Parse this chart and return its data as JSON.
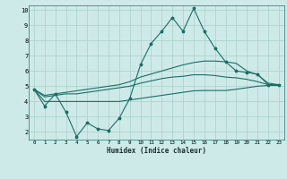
{
  "xlabel": "Humidex (Indice chaleur)",
  "bg_color": "#ceeae8",
  "grid_color": "#aed4d0",
  "line_color": "#1a6e64",
  "x_min": -0.5,
  "x_max": 23.5,
  "y_min": 1.5,
  "y_max": 10.3,
  "yticks": [
    2,
    3,
    4,
    5,
    6,
    7,
    8,
    9,
    10
  ],
  "xticks": [
    0,
    1,
    2,
    3,
    4,
    5,
    6,
    7,
    8,
    9,
    10,
    11,
    12,
    13,
    14,
    15,
    16,
    17,
    18,
    19,
    20,
    21,
    22,
    23
  ],
  "line1_x": [
    0,
    1,
    2,
    3,
    4,
    5,
    6,
    7,
    8,
    9,
    10,
    11,
    12,
    13,
    14,
    15,
    16,
    17,
    18,
    19,
    20,
    21,
    22,
    23
  ],
  "line1_y": [
    4.8,
    3.7,
    4.5,
    3.3,
    1.7,
    2.6,
    2.2,
    2.1,
    2.9,
    4.2,
    6.4,
    7.8,
    8.6,
    9.5,
    8.6,
    10.1,
    8.6,
    7.5,
    6.6,
    6.0,
    5.9,
    5.8,
    5.1,
    5.1
  ],
  "line2_x": [
    0,
    1,
    2,
    3,
    4,
    5,
    6,
    7,
    8,
    9,
    10,
    11,
    12,
    13,
    14,
    15,
    16,
    17,
    18,
    19,
    20,
    21,
    22,
    23
  ],
  "line2_y": [
    4.8,
    4.4,
    4.5,
    4.6,
    4.7,
    4.8,
    4.9,
    5.0,
    5.1,
    5.3,
    5.6,
    5.8,
    6.0,
    6.2,
    6.4,
    6.55,
    6.65,
    6.65,
    6.6,
    6.5,
    6.0,
    5.75,
    5.2,
    5.1
  ],
  "line3_x": [
    0,
    1,
    2,
    3,
    4,
    5,
    6,
    7,
    8,
    9,
    10,
    11,
    12,
    13,
    14,
    15,
    16,
    17,
    18,
    19,
    20,
    21,
    22,
    23
  ],
  "line3_y": [
    4.8,
    4.3,
    4.4,
    4.5,
    4.5,
    4.6,
    4.7,
    4.8,
    4.9,
    5.0,
    5.2,
    5.35,
    5.5,
    5.6,
    5.65,
    5.75,
    5.75,
    5.7,
    5.6,
    5.55,
    5.45,
    5.3,
    5.1,
    5.1
  ],
  "line4_x": [
    0,
    1,
    2,
    3,
    4,
    5,
    6,
    7,
    8,
    9,
    10,
    11,
    12,
    13,
    14,
    15,
    16,
    17,
    18,
    19,
    20,
    21,
    22,
    23
  ],
  "line4_y": [
    4.8,
    4.0,
    4.0,
    4.0,
    4.0,
    4.0,
    4.0,
    4.0,
    4.0,
    4.1,
    4.2,
    4.3,
    4.4,
    4.5,
    4.6,
    4.7,
    4.72,
    4.72,
    4.72,
    4.8,
    4.9,
    5.0,
    5.05,
    5.05
  ]
}
